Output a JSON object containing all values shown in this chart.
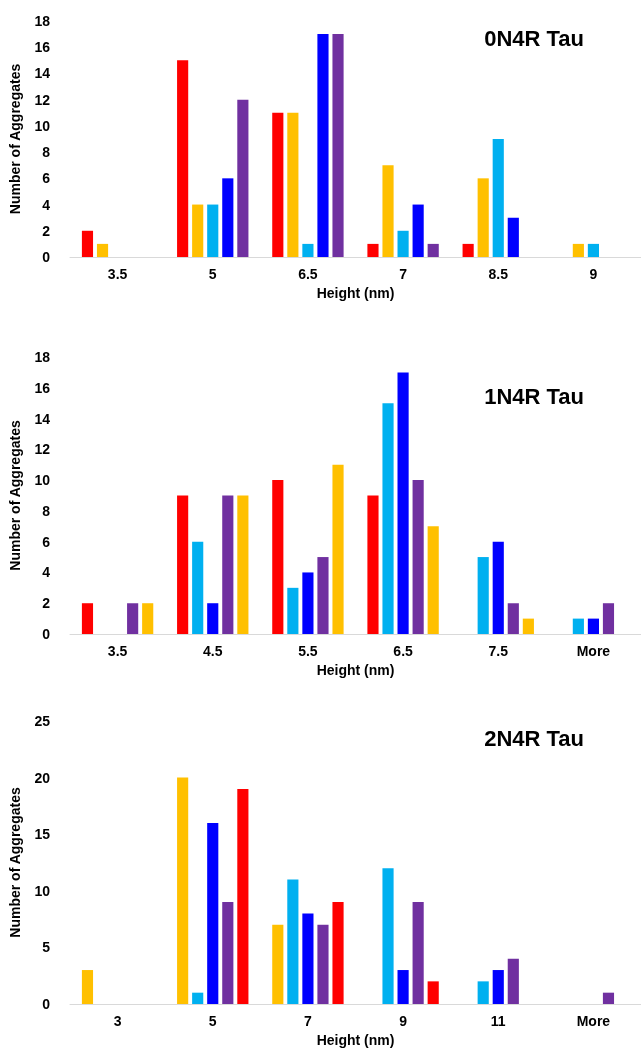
{
  "chart_data": [
    {
      "type": "bar",
      "title": "0N4R Tau",
      "xlabel": "Height (nm)",
      "ylabel": "Number of Aggregates",
      "categories": [
        "3.5",
        "5",
        "6.5",
        "7",
        "8.5",
        "9"
      ],
      "ylim": [
        0,
        18
      ],
      "yticks": [
        0,
        2,
        4,
        6,
        8,
        10,
        12,
        14,
        16,
        18
      ],
      "series": [
        {
          "color": "#ff0000",
          "values": [
            2,
            15,
            11,
            1,
            1,
            0
          ]
        },
        {
          "color": "#ffc000",
          "values": [
            1,
            4,
            11,
            7,
            6,
            1
          ]
        },
        {
          "color": "#00b0f0",
          "values": [
            0,
            4,
            1,
            2,
            9,
            1
          ]
        },
        {
          "color": "#0000ff",
          "values": [
            0,
            6,
            17,
            4,
            3,
            0
          ]
        },
        {
          "color": "#7030a0",
          "values": [
            0,
            12,
            17,
            1,
            0,
            0
          ]
        }
      ]
    },
    {
      "type": "bar",
      "title": "1N4R Tau",
      "xlabel": "Height (nm)",
      "ylabel": "Number of Aggregates",
      "categories": [
        "3.5",
        "4.5",
        "5.5",
        "6.5",
        "7.5",
        "More"
      ],
      "ylim": [
        0,
        18
      ],
      "yticks": [
        0,
        2,
        4,
        6,
        8,
        10,
        12,
        14,
        16,
        18
      ],
      "series": [
        {
          "color": "#ff0000",
          "values": [
            2,
            9,
            10,
            9,
            0,
            0
          ]
        },
        {
          "color": "#00b0f0",
          "values": [
            0,
            6,
            3,
            15,
            5,
            1
          ]
        },
        {
          "color": "#0000ff",
          "values": [
            0,
            2,
            4,
            17,
            6,
            1
          ]
        },
        {
          "color": "#7030a0",
          "values": [
            2,
            9,
            5,
            10,
            2,
            2
          ]
        },
        {
          "color": "#ffc000",
          "values": [
            2,
            9,
            11,
            7,
            1,
            0
          ]
        }
      ]
    },
    {
      "type": "bar",
      "title": "2N4R Tau",
      "xlabel": "Height (nm)",
      "ylabel": "Number of Aggregates",
      "categories": [
        "3",
        "5",
        "7",
        "9",
        "11",
        "More"
      ],
      "ylim": [
        0,
        25
      ],
      "yticks": [
        0,
        5,
        10,
        15,
        20,
        25
      ],
      "series": [
        {
          "color": "#ffc000",
          "values": [
            3,
            20,
            7,
            0,
            0,
            0
          ]
        },
        {
          "color": "#00b0f0",
          "values": [
            0,
            1,
            11,
            12,
            2,
            0
          ]
        },
        {
          "color": "#0000ff",
          "values": [
            0,
            16,
            8,
            3,
            3,
            0
          ]
        },
        {
          "color": "#7030a0",
          "values": [
            0,
            9,
            7,
            9,
            4,
            1
          ]
        },
        {
          "color": "#ff0000",
          "values": [
            0,
            19,
            9,
            2,
            0,
            0
          ]
        }
      ]
    }
  ]
}
